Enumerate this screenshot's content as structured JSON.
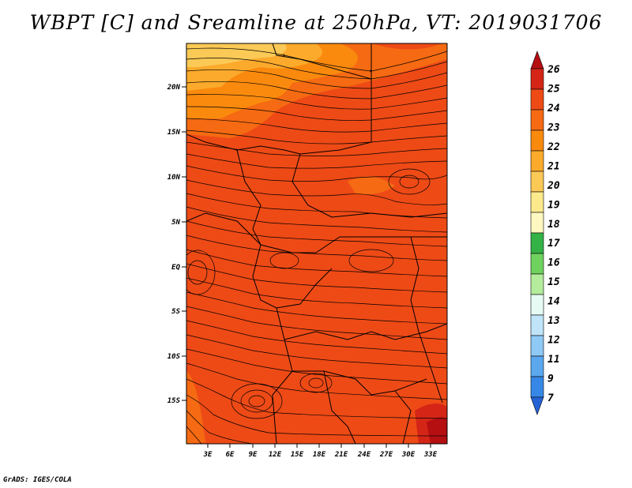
{
  "title": "WBPT [C] and Sreamline at 250hPa, VT: 2019031706",
  "credit": "GrADS: IGES/COLA",
  "map": {
    "lon_ticks": [
      "3E",
      "6E",
      "9E",
      "12E",
      "15E",
      "18E",
      "21E",
      "24E",
      "27E",
      "30E",
      "33E"
    ],
    "lat_ticks": [
      "20N",
      "15N",
      "10N",
      "5N",
      "EQ",
      "5S",
      "10S",
      "15S"
    ],
    "background_color": "#ee4a16"
  },
  "colorbar": {
    "labels": [
      "26",
      "25",
      "24",
      "23",
      "22",
      "21",
      "20",
      "19",
      "18",
      "17",
      "16",
      "15",
      "14",
      "13",
      "12",
      "11",
      "9",
      "7"
    ],
    "colors": [
      "#b50f12",
      "#d42516",
      "#ee4a16",
      "#f56a12",
      "#fa8a0e",
      "#fcaa2c",
      "#fbc956",
      "#fce98c",
      "#fef7c0",
      "#34b246",
      "#6fd25f",
      "#b4ec9c",
      "#e6fbf4",
      "#c0e5f9",
      "#8fc9f5",
      "#5ba8ef",
      "#3788e6",
      "#2462d6"
    ]
  }
}
